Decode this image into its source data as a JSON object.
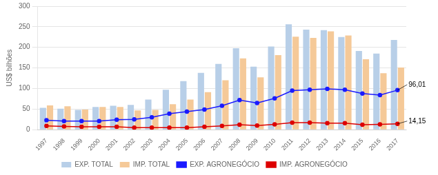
{
  "chart_data": {
    "type": "bar",
    "categories": [
      "1997",
      "1998",
      "1999",
      "2000",
      "2001",
      "2002",
      "2003",
      "2004",
      "2005",
      "2006",
      "2007",
      "2008",
      "2009",
      "2010",
      "2011",
      "2012",
      "2013",
      "2014",
      "2015",
      "2016",
      "2017"
    ],
    "series": [
      {
        "name": "EXP. TOTAL",
        "type": "bar",
        "color": "#b8cfe8",
        "values": [
          53,
          51,
          48,
          55,
          58,
          60,
          73,
          97,
          118,
          138,
          160,
          198,
          153,
          202,
          256,
          243,
          242,
          225,
          191,
          185,
          218
        ]
      },
      {
        "name": "IMP. TOTAL",
        "type": "bar",
        "color": "#f5c998",
        "values": [
          59,
          57,
          49,
          55,
          55,
          47,
          48,
          62,
          73,
          91,
          120,
          173,
          127,
          181,
          226,
          223,
          239,
          229,
          171,
          137,
          151
        ]
      },
      {
        "name": "EXP. AGRONEGÓCIO",
        "type": "line",
        "color": "#1a1aff",
        "marker": "circle",
        "values": [
          23,
          21,
          21,
          21,
          24,
          25,
          30,
          39,
          44,
          49,
          58,
          72,
          65,
          76,
          95,
          97,
          99,
          97,
          88,
          84,
          96
        ]
      },
      {
        "name": "IMP. AGRONEGÓCIO",
        "type": "line",
        "color": "#dd0000",
        "marker": "circle",
        "values": [
          9,
          8,
          7,
          7,
          7,
          5,
          5,
          5,
          5,
          7,
          9,
          12,
          10,
          13,
          17,
          17,
          16,
          16,
          12,
          13,
          14
        ]
      }
    ],
    "ylabel": "US$ bilhões",
    "ylim": [
      0,
      300
    ],
    "yticks": [
      0,
      50,
      100,
      150,
      200,
      250,
      300
    ],
    "grid": "y",
    "legend": "bottom",
    "annotations": [
      {
        "text": "96,01",
        "x": "2017",
        "y": 96.01
      },
      {
        "text": "14,15",
        "x": "2017",
        "y": 14.15
      }
    ]
  }
}
